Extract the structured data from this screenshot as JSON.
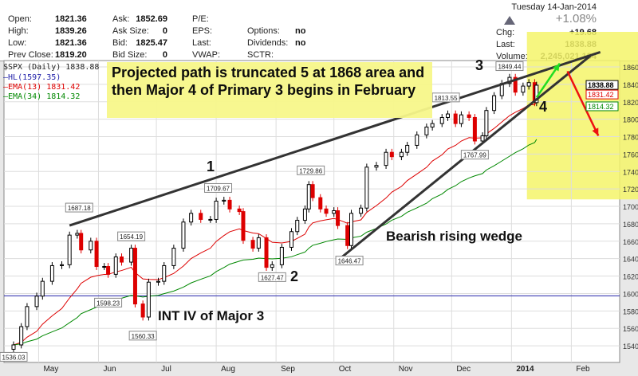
{
  "header": {
    "quote": [
      {
        "label": "Open:",
        "value": "1821.36"
      },
      {
        "label": "High:",
        "value": "1839.26"
      },
      {
        "label": "Low:",
        "value": "1821.36"
      },
      {
        "label": "Prev Close:",
        "value": "1819.20"
      }
    ],
    "book": [
      {
        "label": "Ask:",
        "value": "1852.69"
      },
      {
        "label": "Ask Size:",
        "value": "0"
      },
      {
        "label": "Bid:",
        "value": "1825.47"
      },
      {
        "label": "Bid Size:",
        "value": "0"
      }
    ],
    "fund": [
      "P/E:",
      "EPS:",
      "Last:",
      "VWAP:"
    ],
    "flags": [
      {
        "label": "Options:",
        "value": "no"
      },
      {
        "label": "Dividends:",
        "value": "no"
      },
      {
        "label": "SCTR:",
        "value": ""
      }
    ],
    "date": "Tuesday  14-Jan-2014",
    "pct": "+1.08%",
    "chg_label": "Chg:",
    "chg": "+19.68",
    "last_label": "Last:",
    "last": "1838.88",
    "vol_label": "Volume:",
    "vol": "2,245,021,184"
  },
  "legend": {
    "symbol": "$SPX (Daily) 1838.88",
    "hl": "HL(1597.35)",
    "ema13": "EMA(13) 1831.42",
    "ema34": "EMA(34) 1814.32"
  },
  "annotations": {
    "note": "Projected path is truncated 5 at 1868 area and then Major 4 of Primary 3 begins in February",
    "w1": "1",
    "w2": "2",
    "w3": "3",
    "w4": "4",
    "wedge": "Bearish rising wedge",
    "int4": "INT IV of Major 3"
  },
  "chart_data": {
    "type": "candlestick",
    "title": "$SPX (Daily)",
    "ylim": [
      1520,
      1880
    ],
    "yticks": [
      1540,
      1560,
      1580,
      1600,
      1620,
      1640,
      1660,
      1680,
      1700,
      1720,
      1740,
      1760,
      1780,
      1800,
      1820,
      1840,
      1860
    ],
    "xticks": [
      {
        "date": "2013-05-01",
        "label": "May"
      },
      {
        "date": "2013-06-01",
        "label": "Jun"
      },
      {
        "date": "2013-07-01",
        "label": "Jul"
      },
      {
        "date": "2013-08-01",
        "label": "Aug"
      },
      {
        "date": "2013-09-01",
        "label": "Sep"
      },
      {
        "date": "2013-10-01",
        "label": "Oct"
      },
      {
        "date": "2013-11-01",
        "label": "Nov"
      },
      {
        "date": "2013-12-01",
        "label": "Dec"
      },
      {
        "date": "2014-01-01",
        "label": "2014"
      },
      {
        "date": "2014-02-01",
        "label": "Feb"
      }
    ],
    "closes": [
      [
        "2013-04-18",
        1541
      ],
      [
        "2013-04-22",
        1562
      ],
      [
        "2013-04-25",
        1585
      ],
      [
        "2013-04-30",
        1597
      ],
      [
        "2013-05-03",
        1614
      ],
      [
        "2013-05-08",
        1632
      ],
      [
        "2013-05-13",
        1633
      ],
      [
        "2013-05-17",
        1667
      ],
      [
        "2013-05-21",
        1669
      ],
      [
        "2013-05-23",
        1650
      ],
      [
        "2013-05-28",
        1660
      ],
      [
        "2013-05-31",
        1631
      ],
      [
        "2013-06-04",
        1631
      ],
      [
        "2013-06-06",
        1622
      ],
      [
        "2013-06-10",
        1642
      ],
      [
        "2013-06-13",
        1636
      ],
      [
        "2013-06-18",
        1652
      ],
      [
        "2013-06-20",
        1588
      ],
      [
        "2013-06-24",
        1573
      ],
      [
        "2013-06-27",
        1613
      ],
      [
        "2013-07-02",
        1614
      ],
      [
        "2013-07-05",
        1632
      ],
      [
        "2013-07-10",
        1652
      ],
      [
        "2013-07-15",
        1682
      ],
      [
        "2013-07-19",
        1692
      ],
      [
        "2013-07-24",
        1685
      ],
      [
        "2013-07-29",
        1685
      ],
      [
        "2013-08-01",
        1706
      ],
      [
        "2013-08-05",
        1707
      ],
      [
        "2013-08-08",
        1697
      ],
      [
        "2013-08-13",
        1694
      ],
      [
        "2013-08-15",
        1661
      ],
      [
        "2013-08-20",
        1652
      ],
      [
        "2013-08-23",
        1664
      ],
      [
        "2013-08-27",
        1630
      ],
      [
        "2013-08-30",
        1633
      ],
      [
        "2013-09-04",
        1653
      ],
      [
        "2013-09-09",
        1671
      ],
      [
        "2013-09-12",
        1684
      ],
      [
        "2013-09-16",
        1697
      ],
      [
        "2013-09-18",
        1725
      ],
      [
        "2013-09-20",
        1710
      ],
      [
        "2013-09-24",
        1697
      ],
      [
        "2013-09-27",
        1692
      ],
      [
        "2013-10-01",
        1695
      ],
      [
        "2013-10-03",
        1678
      ],
      [
        "2013-10-08",
        1655
      ],
      [
        "2013-10-10",
        1692
      ],
      [
        "2013-10-15",
        1698
      ],
      [
        "2013-10-18",
        1745
      ],
      [
        "2013-10-23",
        1747
      ],
      [
        "2013-10-28",
        1762
      ],
      [
        "2013-10-31",
        1757
      ],
      [
        "2013-11-05",
        1762
      ],
      [
        "2013-11-08",
        1770
      ],
      [
        "2013-11-13",
        1782
      ],
      [
        "2013-11-18",
        1791
      ],
      [
        "2013-11-21",
        1795
      ],
      [
        "2013-11-26",
        1802
      ],
      [
        "2013-11-29",
        1806
      ],
      [
        "2013-12-03",
        1795
      ],
      [
        "2013-12-06",
        1805
      ],
      [
        "2013-12-10",
        1802
      ],
      [
        "2013-12-13",
        1775
      ],
      [
        "2013-12-17",
        1781
      ],
      [
        "2013-12-19",
        1810
      ],
      [
        "2013-12-23",
        1827
      ],
      [
        "2013-12-27",
        1841
      ],
      [
        "2013-12-31",
        1848
      ],
      [
        "2014-01-03",
        1831
      ],
      [
        "2014-01-07",
        1838
      ],
      [
        "2014-01-10",
        1842
      ],
      [
        "2014-01-13",
        1819
      ],
      [
        "2014-01-14",
        1839
      ]
    ],
    "price_labels": [
      [
        "2013-04-18",
        1536.03,
        "1536.03",
        "below"
      ],
      [
        "2013-05-22",
        1687.18,
        "1687.18",
        "above"
      ],
      [
        "2013-06-06",
        1598.23,
        "1598.23",
        "below"
      ],
      [
        "2013-06-18",
        1654.19,
        "1654.19",
        "above"
      ],
      [
        "2013-06-24",
        1560.33,
        "1560.33",
        "below"
      ],
      [
        "2013-08-02",
        1709.67,
        "1709.67",
        "above"
      ],
      [
        "2013-08-30",
        1627.47,
        "1627.47",
        "below"
      ],
      [
        "2013-09-19",
        1729.86,
        "1729.86",
        "above"
      ],
      [
        "2013-10-09",
        1646.47,
        "1646.47",
        "below"
      ],
      [
        "2013-11-28",
        1813.55,
        "1813.55",
        "above"
      ],
      [
        "2013-12-13",
        1767.99,
        "1767.99",
        "below"
      ],
      [
        "2013-12-31",
        1849.44,
        "1849.44",
        "above"
      ]
    ],
    "hl": 1597.35,
    "last_values": {
      "close": "1838.88",
      "ema13": "1831.42",
      "ema34": "1814.32"
    },
    "trendlines": [
      {
        "from": [
          "2013-05-17",
          1678
        ],
        "to": [
          "2014-02-16",
          1877
        ],
        "color": "#333333"
      },
      {
        "from": [
          "2013-10-03",
          1638
        ],
        "to": [
          "2014-02-11",
          1873
        ],
        "color": "#333333"
      }
    ],
    "arrows": [
      {
        "from": [
          "2014-01-14",
          1825
        ],
        "to": [
          "2014-01-26",
          1864
        ],
        "color": "#22dd22"
      },
      {
        "from": [
          "2014-01-30",
          1855
        ],
        "to": [
          "2014-02-15",
          1781
        ],
        "color": "#ee1111"
      }
    ],
    "highlight": {
      "from": "2014-01-09",
      "price_min": 1708,
      "color": "#f5f56a"
    },
    "colors": {
      "up": "#000000",
      "down": "#dd0000",
      "ema13": "#dd0000",
      "ema34": "#008800",
      "hl": "#2222aa"
    },
    "grid": true
  }
}
